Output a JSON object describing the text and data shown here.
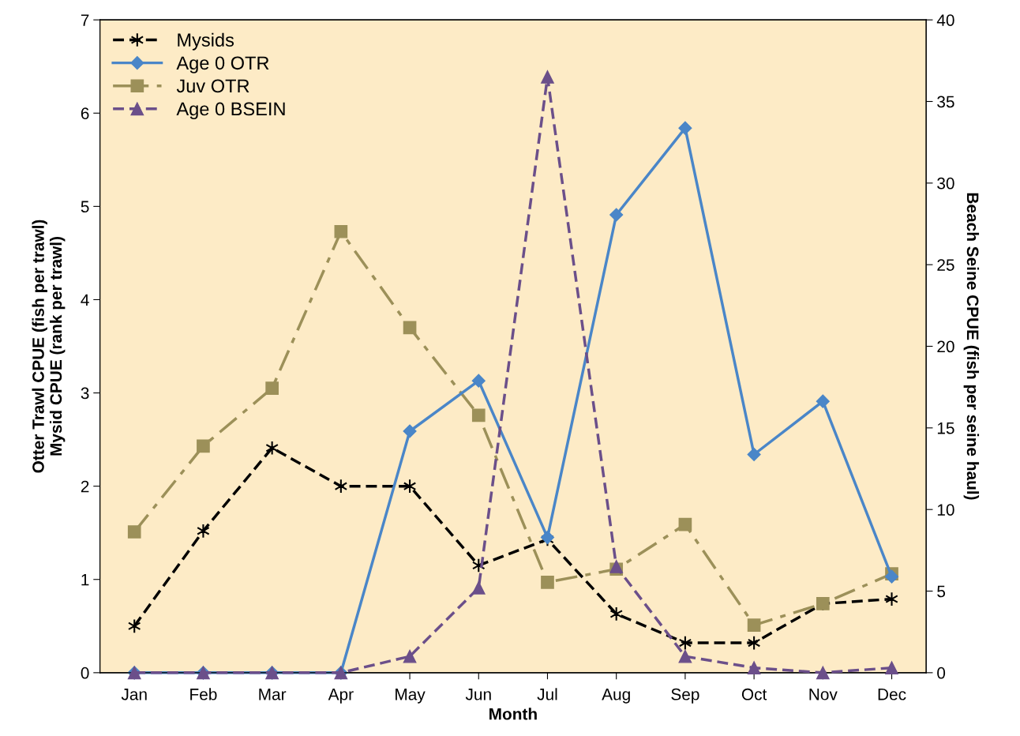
{
  "chart_data": {
    "type": "line",
    "xlabel": "Month",
    "ylabel": "Otter Trawl CPUE (fish per trawl)\nMysid CPUE (rank per trawl)",
    "y2label": "Beach Seine CPUE (fish per seine haul)",
    "categories": [
      "Jan",
      "Feb",
      "Mar",
      "Apr",
      "May",
      "Jun",
      "Jul",
      "Aug",
      "Sep",
      "Oct",
      "Nov",
      "Dec"
    ],
    "series": [
      {
        "name": "Mysids",
        "color": "#000000",
        "marker": "cross",
        "line_style": "dashed",
        "values": [
          0.5,
          1.52,
          2.41,
          2.0,
          2.0,
          1.15,
          1.43,
          0.63,
          0.32,
          0.32,
          0.74,
          0.79
        ]
      },
      {
        "name": "Age 0 OTR",
        "color": "#4a86c8",
        "marker": "diamond",
        "line_style": "solid",
        "values": [
          0,
          0,
          0,
          0,
          2.59,
          3.13,
          1.45,
          4.91,
          5.84,
          2.34,
          2.91,
          1.03
        ]
      },
      {
        "name": "Juv OTR",
        "color": "#9c9059",
        "marker": "square",
        "line_style": "dashdot",
        "values": [
          1.51,
          2.43,
          3.05,
          4.73,
          3.7,
          2.76,
          0.97,
          1.11,
          1.59,
          0.51,
          0.74,
          1.06
        ]
      },
      {
        "name": "Age 0 BSEIN",
        "color": "#6b4f8a",
        "marker": "triangle",
        "line_style": "dashed",
        "axis": "y2",
        "values": [
          0,
          0,
          0,
          0,
          1.0,
          5.2,
          36.5,
          6.5,
          1.0,
          0.3,
          0,
          0.3
        ]
      }
    ],
    "ylim": [
      0,
      7
    ],
    "yticks": [
      0,
      1,
      2,
      3,
      4,
      5,
      6,
      7
    ],
    "y2lim": [
      0,
      40
    ],
    "y2ticks": [
      0,
      5,
      10,
      15,
      20,
      25,
      30,
      35,
      40
    ],
    "grid": false,
    "legend": "top left"
  }
}
